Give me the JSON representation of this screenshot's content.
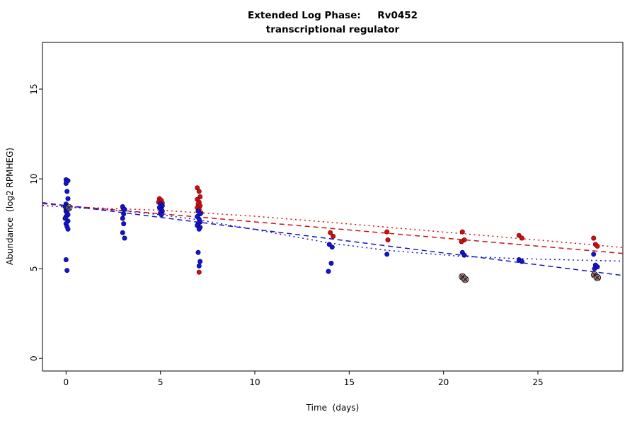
{
  "chart_data": {
    "type": "scatter",
    "title": "Extended Log Phase:     Rv0452",
    "subtitle": "transcriptional regulator",
    "xlabel": "Time  (days)",
    "ylabel": "Abundance  (log2 RPMHEG)",
    "xlim": [
      -1.25,
      29.5
    ],
    "ylim": [
      -0.7,
      17.6
    ],
    "xticks": [
      0,
      5,
      10,
      15,
      20,
      25
    ],
    "yticks": [
      0,
      5,
      10,
      15
    ],
    "grid": false,
    "legend": "none",
    "series": [
      {
        "name": "condition-red",
        "color": "#cc1010",
        "edge": "#6b0000",
        "points": [
          [
            0,
            8.5
          ],
          [
            0.1,
            8.35
          ],
          [
            0,
            8.25
          ],
          [
            3.05,
            8.3
          ],
          [
            4.95,
            8.9
          ],
          [
            5.05,
            8.8
          ],
          [
            4.9,
            8.7
          ],
          [
            5.1,
            8.65
          ],
          [
            5,
            8.6
          ],
          [
            5.05,
            8.5
          ],
          [
            6.95,
            9.5
          ],
          [
            7.05,
            9.3
          ],
          [
            7.1,
            9.0
          ],
          [
            6.95,
            8.85
          ],
          [
            7.05,
            8.7
          ],
          [
            7,
            8.6
          ],
          [
            7.1,
            8.5
          ],
          [
            6.95,
            8.4
          ],
          [
            7.05,
            8.3
          ],
          [
            7,
            8.2
          ],
          [
            7.15,
            8.1
          ],
          [
            7.05,
            4.8
          ],
          [
            14,
            7.0
          ],
          [
            14.15,
            6.8
          ],
          [
            17,
            7.05
          ],
          [
            17.05,
            6.6
          ],
          [
            21,
            7.05
          ],
          [
            21.1,
            6.6
          ],
          [
            20.95,
            6.5
          ],
          [
            24,
            6.85
          ],
          [
            24.15,
            6.7
          ],
          [
            27.95,
            6.7
          ],
          [
            28.05,
            6.35
          ],
          [
            28.15,
            6.25
          ],
          [
            21,
            4.55
          ],
          [
            21.15,
            4.4
          ],
          [
            28,
            4.65
          ],
          [
            28.15,
            4.5
          ]
        ]
      },
      {
        "name": "condition-blue",
        "color": "#1414cc",
        "edge": "#000060",
        "points": [
          [
            0,
            9.95
          ],
          [
            0.1,
            9.9
          ],
          [
            0,
            9.75
          ],
          [
            0.05,
            9.3
          ],
          [
            0.1,
            8.9
          ],
          [
            0,
            8.6
          ],
          [
            -0.05,
            8.45
          ],
          [
            0.1,
            8.3
          ],
          [
            0,
            8.2
          ],
          [
            0.05,
            8.1
          ],
          [
            0.1,
            8.0
          ],
          [
            0,
            7.9
          ],
          [
            -0.05,
            7.8
          ],
          [
            0.1,
            7.65
          ],
          [
            0,
            7.5
          ],
          [
            0.05,
            7.35
          ],
          [
            0.1,
            7.2
          ],
          [
            0,
            5.5
          ],
          [
            0.05,
            4.9
          ],
          [
            3,
            8.45
          ],
          [
            3.1,
            8.3
          ],
          [
            3.05,
            8.05
          ],
          [
            3,
            7.8
          ],
          [
            3.05,
            7.5
          ],
          [
            3,
            7.0
          ],
          [
            3.1,
            6.7
          ],
          [
            5,
            8.6
          ],
          [
            5.1,
            8.5
          ],
          [
            4.95,
            8.4
          ],
          [
            5.05,
            8.3
          ],
          [
            5.1,
            8.2
          ],
          [
            5,
            8.1
          ],
          [
            5.05,
            8.0
          ],
          [
            7,
            8.2
          ],
          [
            7.1,
            8.05
          ],
          [
            6.95,
            7.9
          ],
          [
            7.05,
            7.75
          ],
          [
            7.1,
            7.6
          ],
          [
            7,
            7.5
          ],
          [
            6.95,
            7.4
          ],
          [
            7.1,
            7.3
          ],
          [
            7.05,
            7.2
          ],
          [
            7,
            5.9
          ],
          [
            7.1,
            5.4
          ],
          [
            7.05,
            5.15
          ],
          [
            13.95,
            6.35
          ],
          [
            14.1,
            6.2
          ],
          [
            14.05,
            5.3
          ],
          [
            13.9,
            4.85
          ],
          [
            17,
            5.8
          ],
          [
            21,
            5.9
          ],
          [
            21.1,
            5.75
          ],
          [
            24,
            5.5
          ],
          [
            24.15,
            5.4
          ],
          [
            27.95,
            5.8
          ],
          [
            28.05,
            5.2
          ],
          [
            28.15,
            5.1
          ],
          [
            28,
            5.0
          ]
        ]
      }
    ],
    "outliers": {
      "name": "flagged-points",
      "marker": "circle-x",
      "color": "#1a1a1a",
      "fill": "#b9b9b9",
      "points": [
        [
          0.15,
          8.4
        ],
        [
          21,
          4.55
        ],
        [
          21.15,
          4.4
        ],
        [
          28,
          4.65
        ],
        [
          28.15,
          4.5
        ]
      ]
    },
    "trend_lines": [
      {
        "name": "red-dashed",
        "color": "#cc1010",
        "style": "dashed",
        "points": [
          [
            -1.25,
            8.62
          ],
          [
            29.5,
            5.85
          ]
        ]
      },
      {
        "name": "red-dotted",
        "color": "#cc1010",
        "style": "dotted",
        "points": [
          [
            -1.25,
            8.5
          ],
          [
            5,
            8.25
          ],
          [
            10,
            7.92
          ],
          [
            14,
            7.58
          ],
          [
            18,
            7.22
          ],
          [
            22,
            6.86
          ],
          [
            26,
            6.5
          ],
          [
            29.5,
            6.18
          ]
        ]
      },
      {
        "name": "blue-dashed",
        "color": "#1414cc",
        "style": "dashed",
        "points": [
          [
            -1.25,
            8.68
          ],
          [
            29.5,
            4.62
          ]
        ]
      },
      {
        "name": "blue-dotted",
        "color": "#1414cc",
        "style": "dotted",
        "points": [
          [
            -1.25,
            8.52
          ],
          [
            3,
            8.22
          ],
          [
            5,
            8.0
          ],
          [
            7,
            7.72
          ],
          [
            10,
            7.18
          ],
          [
            14,
            6.42
          ],
          [
            17,
            6.02
          ],
          [
            21,
            5.68
          ],
          [
            24,
            5.56
          ],
          [
            27,
            5.48
          ],
          [
            29.5,
            5.42
          ]
        ]
      }
    ]
  }
}
